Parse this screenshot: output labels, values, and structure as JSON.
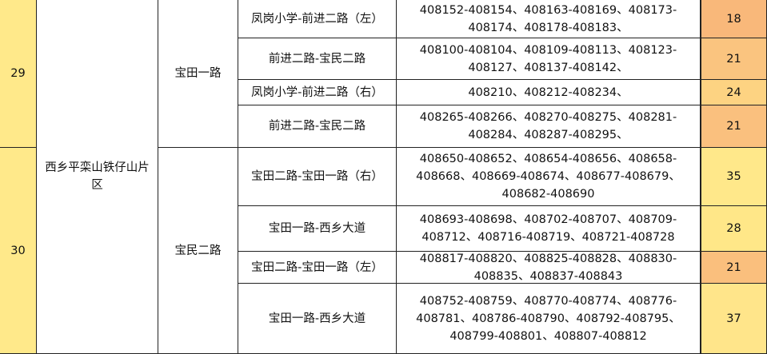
{
  "groups": [
    {
      "no": "29"
    },
    {
      "no": "30"
    }
  ],
  "area": [
    "西乡平栾山铁仔山片",
    "区"
  ],
  "roads": [
    "宝田一路",
    "宝民二路"
  ],
  "rows": [
    {
      "section": "凤岗小学-前进二路（左）",
      "ranges": [
        "408152-408154、408163-408169、408173-",
        "408174、408178-408183、"
      ],
      "count": "18",
      "color": "#F9B87A"
    },
    {
      "section": "前进二路-宝民二路",
      "ranges": [
        "408100-408104、408109-408113、408123-",
        "408127、408137-408142、"
      ],
      "count": "21",
      "color": "#FAC47F"
    },
    {
      "section": "凤岗小学-前进二路（右）",
      "ranges": [
        "408210、408212-408234、"
      ],
      "count": "24",
      "color": "#FDD382"
    },
    {
      "section": "前进二路-宝民二路",
      "ranges": [
        "408265-408266、408270-408275、408281-",
        "408284、408287-408295、"
      ],
      "count": "21",
      "color": "#FAC07E"
    },
    {
      "section": "宝田二路-宝田一路（右）",
      "ranges": [
        "408650-408652、408654-408656、408658-",
        "408668、408669-408674、408677-408679、",
        "408682-408690"
      ],
      "count": "35",
      "color": "#FFE88A"
    },
    {
      "section": "宝田一路-西乡大道",
      "ranges": [
        "408693-408698、408702-408707、408709-",
        "408712、408716-408719、408721-408728"
      ],
      "count": "28",
      "color": "#FFE788"
    },
    {
      "section": "宝田二路-宝田一路（左）",
      "ranges": [
        "408817-408820、408825-408828、408830-",
        "408835、408837-408843"
      ],
      "count": "21",
      "color": "#FABF7D"
    },
    {
      "section": "宝田一路-西乡大道",
      "ranges": [
        "408752-408759、408770-408774、408776-",
        "408781、408786-408790、408792-408795、",
        "408799-408801、408807-408812"
      ],
      "count": "37",
      "color": "#FFE58A"
    }
  ]
}
